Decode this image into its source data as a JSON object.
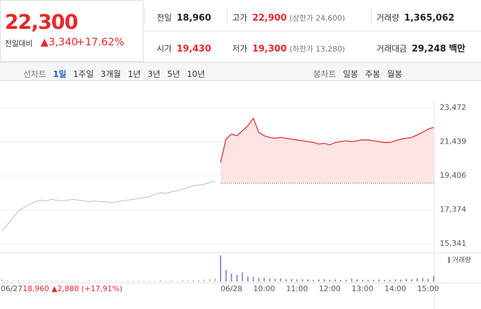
{
  "header": {
    "price": "22,300",
    "change_label": "전일대비",
    "change": "▲3,340",
    "change_pct": "+17.62%",
    "stats": [
      [
        {
          "label": "전일",
          "value": "18,960"
        },
        {
          "label": "고가",
          "value": "22,900",
          "extra": "(상한가 24,600)"
        },
        {
          "label": "거래량",
          "value": "1,365,062"
        }
      ],
      [
        {
          "label": "시가",
          "value": "19,430"
        },
        {
          "label": "저가",
          "value": "19,300",
          "extra": "(하한가 13,280)"
        },
        {
          "label": "거래대금",
          "value": "29,248",
          "unit": "백만"
        }
      ]
    ]
  },
  "tabs": {
    "line_label": "선차트",
    "line": [
      "1일",
      "1주일",
      "3개월",
      "1년",
      "3년",
      "5년",
      "10년"
    ],
    "candle_label": "봉차트",
    "candle": [
      "일봉",
      "주봉",
      "월봉"
    ]
  },
  "footer_info": "18,960 ▲2,880 (+17,91%)",
  "chart_data": [
    {
      "type": "line",
      "baseline": 18960,
      "baseline_color": "#555",
      "area_color": "#fde4e4",
      "categories": [
        "06/27",
        null,
        null,
        null,
        null,
        null,
        null,
        null,
        null,
        null,
        null,
        null,
        null,
        null,
        null,
        null,
        null,
        null,
        null,
        null,
        null,
        null,
        null,
        null,
        null,
        null,
        null,
        null,
        null,
        null,
        null,
        null,
        null,
        null,
        null,
        null,
        null,
        null,
        null,
        null,
        "06/28",
        null,
        null,
        null,
        null,
        null,
        "10:00",
        null,
        null,
        null,
        null,
        null,
        "11:00",
        null,
        null,
        null,
        null,
        null,
        "12:00",
        null,
        null,
        null,
        null,
        null,
        "13:00",
        null,
        null,
        null,
        null,
        null,
        "14:00",
        null,
        null,
        null,
        null,
        null,
        "15:00",
        null,
        null,
        null
      ],
      "series": [
        {
          "color": "#bbbbbb",
          "values": [
            16100,
            16500,
            16900,
            17300,
            17500,
            17700,
            17850,
            17950,
            17900,
            18000,
            17950,
            17900,
            17950,
            18000,
            17950,
            17900,
            17850,
            17900,
            17850,
            17850,
            17800,
            17850,
            17900,
            17950,
            18000,
            18050,
            18100,
            18150,
            18300,
            18400,
            18350,
            18450,
            18500,
            18600,
            18700,
            18800,
            18850,
            18900,
            19000,
            19100,
            null,
            null,
            null,
            null,
            null,
            null,
            null,
            null,
            null,
            null,
            null,
            null,
            null,
            null,
            null,
            null,
            null,
            null,
            null,
            null,
            null,
            null,
            null,
            null,
            null,
            null,
            null,
            null,
            null,
            null,
            null,
            null,
            null,
            null,
            null,
            null,
            null,
            null,
            null,
            null
          ]
        },
        {
          "color": "#e8282b",
          "values": [
            null,
            null,
            null,
            null,
            null,
            null,
            null,
            null,
            null,
            null,
            null,
            null,
            null,
            null,
            null,
            null,
            null,
            null,
            null,
            null,
            null,
            null,
            null,
            null,
            null,
            null,
            null,
            null,
            null,
            null,
            null,
            null,
            null,
            null,
            null,
            null,
            null,
            null,
            null,
            null,
            20200,
            21600,
            21900,
            21800,
            22100,
            22400,
            22850,
            22000,
            21800,
            21700,
            21650,
            21700,
            21650,
            21600,
            21550,
            21500,
            21450,
            21400,
            21300,
            21350,
            21250,
            21400,
            21450,
            21500,
            21450,
            21500,
            21550,
            21550,
            21500,
            21450,
            21400,
            21400,
            21500,
            21600,
            21650,
            21700,
            21850,
            22000,
            22200,
            22300
          ]
        }
      ],
      "ylim": [
        15341,
        23472
      ],
      "yticks": [
        {
          "value": 15341,
          "label": "15,341"
        },
        {
          "value": 17374,
          "label": "17,374"
        },
        {
          "value": 19406,
          "label": "19,406"
        },
        {
          "value": 21439,
          "label": "21,439"
        },
        {
          "value": 23472,
          "label": "23,472"
        }
      ],
      "grid": true
    },
    {
      "type": "bar",
      "ylim": [
        0,
        100
      ],
      "legend": "top-right",
      "series": [
        {
          "color": "#c4c4c4",
          "values": [
            8,
            4,
            3,
            5,
            3,
            2,
            3,
            4,
            2,
            3,
            2,
            3,
            2,
            2,
            3,
            2,
            4,
            2,
            3,
            2,
            2,
            3,
            2,
            3,
            2,
            4,
            3,
            2,
            3,
            5,
            3,
            4,
            3,
            6,
            4,
            5,
            6,
            8,
            10,
            12,
            null,
            null,
            null,
            null,
            null,
            null,
            null,
            null,
            null,
            null,
            null,
            null,
            null,
            null,
            null,
            null,
            null,
            null,
            null,
            null,
            null,
            null,
            null,
            null,
            null,
            null,
            null,
            null,
            null,
            null,
            null,
            null,
            null,
            null,
            null,
            null,
            null,
            null,
            null,
            null
          ]
        },
        {
          "name": "거래량",
          "color": "#9a8cc6",
          "values": [
            null,
            null,
            null,
            null,
            null,
            null,
            null,
            null,
            null,
            null,
            null,
            null,
            null,
            null,
            null,
            null,
            null,
            null,
            null,
            null,
            null,
            null,
            null,
            null,
            null,
            null,
            null,
            null,
            null,
            null,
            null,
            null,
            null,
            null,
            null,
            null,
            null,
            null,
            null,
            null,
            100,
            45,
            30,
            25,
            35,
            20,
            18,
            15,
            14,
            12,
            10,
            12,
            9,
            10,
            8,
            9,
            8,
            7,
            8,
            9,
            7,
            8,
            6,
            7,
            12,
            8,
            7,
            6,
            7,
            8,
            6,
            7,
            9,
            8,
            10,
            9,
            12,
            14,
            10,
            20
          ]
        }
      ]
    }
  ]
}
